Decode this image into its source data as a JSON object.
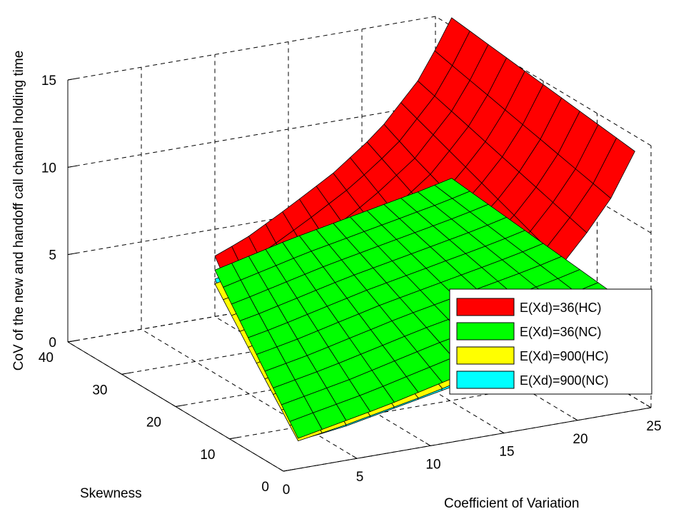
{
  "chart_data": {
    "type": "surface",
    "title": "",
    "xlabel": "Coefficient of Variation",
    "ylabel": "Skewness",
    "zlabel": "CoV of the new and handoff call channel holding time",
    "xlim": [
      0,
      25
    ],
    "ylim": [
      0,
      40
    ],
    "zlim": [
      0,
      15
    ],
    "x_ticks": [
      "0",
      "5",
      "10",
      "15",
      "20",
      "25"
    ],
    "y_ticks": [
      "0",
      "10",
      "20",
      "30",
      "40"
    ],
    "z_ticks": [
      "0",
      "5",
      "10",
      "15"
    ],
    "grid": true,
    "legend_position": "right",
    "series": [
      {
        "name": "E(Xd)=36(HC)",
        "color": "#ff0000",
        "z_at_cov": [
          [
            2,
            0.9
          ],
          [
            5,
            1.5
          ],
          [
            8,
            2.4
          ],
          [
            11,
            3.4
          ],
          [
            14,
            4.8
          ],
          [
            17,
            6.3
          ],
          [
            20,
            8.2
          ],
          [
            23,
            11.0
          ],
          [
            25,
            14.0
          ]
        ]
      },
      {
        "name": "E(Xd)=36(NC)",
        "color": "#00ff00",
        "z_at_cov": [
          [
            2,
            0.9
          ],
          [
            5,
            1.4
          ],
          [
            8,
            1.9
          ],
          [
            11,
            2.5
          ],
          [
            14,
            3.1
          ],
          [
            17,
            3.6
          ],
          [
            20,
            4.1
          ],
          [
            23,
            4.6
          ],
          [
            25,
            5.0
          ]
        ]
      },
      {
        "name": "E(Xd)=900(HC)",
        "color": "#ffff00",
        "z_at_cov": [
          [
            2,
            0.8
          ],
          [
            5,
            1.2
          ],
          [
            8,
            1.7
          ],
          [
            11,
            2.2
          ],
          [
            14,
            2.8
          ],
          [
            17,
            3.3
          ],
          [
            20,
            3.8
          ],
          [
            23,
            4.2
          ],
          [
            25,
            4.5
          ]
        ]
      },
      {
        "name": "E(Xd)=900(NC)",
        "color": "#00ffff",
        "z_at_cov": [
          [
            2,
            0.8
          ],
          [
            5,
            1.1
          ],
          [
            8,
            1.6
          ],
          [
            11,
            2.1
          ],
          [
            14,
            2.6
          ],
          [
            17,
            3.1
          ],
          [
            20,
            3.6
          ],
          [
            23,
            4.0
          ],
          [
            25,
            4.3
          ]
        ]
      }
    ]
  }
}
